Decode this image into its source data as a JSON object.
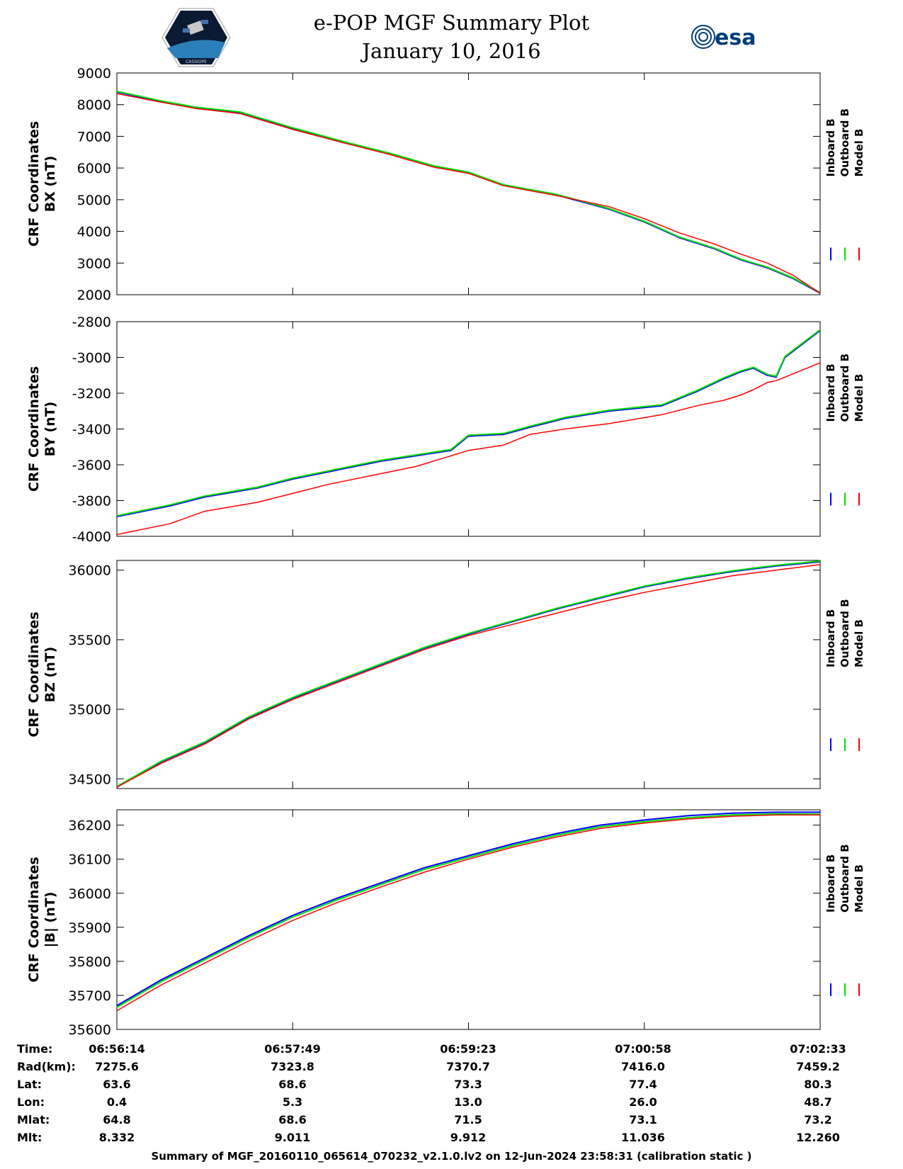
{
  "header": {
    "title": "e-POP MGF Summary Plot",
    "date": "January 10, 2016",
    "esa_logo_text": "esa",
    "mission_logo_text": "CASSIOPE"
  },
  "colors": {
    "inboard": "#0000ff",
    "outboard": "#00dd00",
    "model": "#ff0000"
  },
  "legend": [
    "Inboard B",
    "Outboard B",
    "Model B"
  ],
  "chart_data": [
    {
      "type": "line",
      "title": "",
      "ylabel": "CRF Coordinates\nBX (nT)",
      "ylim": [
        2000,
        9000
      ],
      "yticks": [
        2000,
        3000,
        4000,
        5000,
        6000,
        7000,
        8000,
        9000
      ],
      "xlim": [
        0,
        4
      ],
      "series": [
        {
          "name": "Inboard B",
          "x": [
            0,
            0.25,
            0.45,
            0.7,
            1.0,
            1.3,
            1.55,
            1.8,
            2.0,
            2.2,
            2.5,
            2.8,
            3.0,
            3.2,
            3.4,
            3.55,
            3.7,
            3.85,
            4.0
          ],
          "values": [
            8400,
            8100,
            7900,
            7750,
            7250,
            6800,
            6450,
            6050,
            5850,
            5450,
            5150,
            4700,
            4300,
            3800,
            3450,
            3100,
            2850,
            2500,
            2050
          ]
        },
        {
          "name": "Outboard B",
          "x": [
            0,
            0.25,
            0.45,
            0.7,
            1.0,
            1.3,
            1.55,
            1.8,
            2.0,
            2.2,
            2.5,
            2.8,
            3.0,
            3.2,
            3.4,
            3.55,
            3.7,
            3.85,
            4.0
          ],
          "values": [
            8420,
            8120,
            7920,
            7770,
            7270,
            6820,
            6470,
            6070,
            5870,
            5470,
            5170,
            4720,
            4320,
            3820,
            3470,
            3120,
            2870,
            2520,
            2070
          ]
        },
        {
          "name": "Model B",
          "x": [
            0,
            0.25,
            0.45,
            0.7,
            1.0,
            1.3,
            1.55,
            1.8,
            2.0,
            2.2,
            2.5,
            2.8,
            3.0,
            3.2,
            3.4,
            3.55,
            3.7,
            3.85,
            4.0
          ],
          "values": [
            8350,
            8080,
            7880,
            7720,
            7220,
            6780,
            6430,
            6030,
            5830,
            5440,
            5130,
            4780,
            4400,
            3950,
            3600,
            3280,
            3000,
            2600,
            2050
          ]
        }
      ]
    },
    {
      "type": "line",
      "title": "",
      "ylabel": "CRF Coordinates\nBY (nT)",
      "ylim": [
        -4000,
        -2800
      ],
      "yticks": [
        -4000,
        -3800,
        -3600,
        -3400,
        -3200,
        -3000,
        -2800
      ],
      "xlim": [
        0,
        4
      ],
      "series": [
        {
          "name": "Inboard B",
          "x": [
            0,
            0.3,
            0.5,
            0.8,
            1.0,
            1.2,
            1.5,
            1.7,
            1.9,
            2.0,
            2.2,
            2.35,
            2.55,
            2.8,
            3.1,
            3.3,
            3.45,
            3.55,
            3.62,
            3.7,
            3.75,
            3.8,
            4.0
          ],
          "values": [
            -3890,
            -3830,
            -3780,
            -3730,
            -3680,
            -3640,
            -3580,
            -3550,
            -3520,
            -3440,
            -3430,
            -3390,
            -3340,
            -3300,
            -3270,
            -3190,
            -3120,
            -3080,
            -3060,
            -3100,
            -3110,
            -3000,
            -2850
          ]
        },
        {
          "name": "Outboard B",
          "x": [
            0,
            0.3,
            0.5,
            0.8,
            1.0,
            1.2,
            1.5,
            1.7,
            1.9,
            2.0,
            2.2,
            2.35,
            2.55,
            2.8,
            3.1,
            3.3,
            3.45,
            3.55,
            3.62,
            3.7,
            3.75,
            3.8,
            4.0
          ],
          "values": [
            -3885,
            -3825,
            -3775,
            -3725,
            -3675,
            -3635,
            -3575,
            -3545,
            -3515,
            -3435,
            -3425,
            -3385,
            -3335,
            -3295,
            -3265,
            -3185,
            -3115,
            -3075,
            -3055,
            -3095,
            -3105,
            -2995,
            -2845
          ]
        },
        {
          "name": "Model B",
          "x": [
            0,
            0.3,
            0.5,
            0.8,
            1.0,
            1.2,
            1.5,
            1.7,
            1.9,
            2.0,
            2.2,
            2.35,
            2.55,
            2.8,
            3.1,
            3.3,
            3.45,
            3.55,
            3.62,
            3.7,
            3.75,
            3.8,
            4.0
          ],
          "values": [
            -3990,
            -3930,
            -3860,
            -3810,
            -3760,
            -3710,
            -3650,
            -3610,
            -3550,
            -3520,
            -3490,
            -3430,
            -3400,
            -3370,
            -3320,
            -3270,
            -3240,
            -3210,
            -3180,
            -3140,
            -3130,
            -3110,
            -3030
          ]
        }
      ]
    },
    {
      "type": "line",
      "title": "",
      "ylabel": "CRF Coordinates\nBZ (nT)",
      "ylim": [
        34430,
        36070
      ],
      "yticks": [
        34500,
        35000,
        35500,
        36000
      ],
      "xlim": [
        0,
        4
      ],
      "series": [
        {
          "name": "Inboard B",
          "x": [
            0,
            0.25,
            0.5,
            0.75,
            1.0,
            1.25,
            1.5,
            1.75,
            2.0,
            2.25,
            2.5,
            2.75,
            3.0,
            3.25,
            3.5,
            3.75,
            4.0
          ],
          "values": [
            34440,
            34620,
            34760,
            34940,
            35080,
            35200,
            35320,
            35440,
            35540,
            35630,
            35720,
            35800,
            35880,
            35940,
            35990,
            36030,
            36060
          ]
        },
        {
          "name": "Outboard B",
          "x": [
            0,
            0.25,
            0.5,
            0.75,
            1.0,
            1.25,
            1.5,
            1.75,
            2.0,
            2.25,
            2.5,
            2.75,
            3.0,
            3.25,
            3.5,
            3.75,
            4.0
          ],
          "values": [
            34445,
            34625,
            34765,
            34945,
            35085,
            35205,
            35325,
            35445,
            35545,
            35635,
            35725,
            35805,
            35885,
            35945,
            35995,
            36035,
            36065
          ]
        },
        {
          "name": "Model B",
          "x": [
            0,
            0.25,
            0.5,
            0.75,
            1.0,
            1.25,
            1.5,
            1.75,
            2.0,
            2.25,
            2.5,
            2.75,
            3.0,
            3.25,
            3.5,
            3.75,
            4.0
          ],
          "values": [
            34440,
            34610,
            34750,
            34930,
            35070,
            35190,
            35310,
            35430,
            35530,
            35610,
            35690,
            35770,
            35840,
            35900,
            35960,
            36000,
            36040
          ]
        }
      ]
    },
    {
      "type": "line",
      "title": "",
      "ylabel": "CRF Coordinates\n|B| (nT)",
      "ylim": [
        35600,
        36245
      ],
      "yticks": [
        35600,
        35700,
        35800,
        35900,
        36000,
        36100,
        36200
      ],
      "xlim": [
        0,
        4
      ],
      "series": [
        {
          "name": "Inboard B",
          "x": [
            0,
            0.25,
            0.5,
            0.75,
            1.0,
            1.25,
            1.5,
            1.75,
            2.0,
            2.25,
            2.5,
            2.75,
            3.0,
            3.25,
            3.5,
            3.75,
            4.0
          ],
          "values": [
            35670,
            35745,
            35810,
            35875,
            35935,
            35985,
            36030,
            36075,
            36110,
            36145,
            36175,
            36200,
            36215,
            36228,
            36235,
            36238,
            36238
          ]
        },
        {
          "name": "Outboard B",
          "x": [
            0,
            0.25,
            0.5,
            0.75,
            1.0,
            1.25,
            1.5,
            1.75,
            2.0,
            2.25,
            2.5,
            2.75,
            3.0,
            3.25,
            3.5,
            3.75,
            4.0
          ],
          "values": [
            35665,
            35740,
            35805,
            35870,
            35930,
            35980,
            36025,
            36070,
            36105,
            36140,
            36170,
            36195,
            36210,
            36222,
            36230,
            36233,
            36232
          ]
        },
        {
          "name": "Model B",
          "x": [
            0,
            0.25,
            0.5,
            0.75,
            1.0,
            1.25,
            1.5,
            1.75,
            2.0,
            2.25,
            2.5,
            2.75,
            3.0,
            3.25,
            3.5,
            3.75,
            4.0
          ],
          "values": [
            35655,
            35730,
            35795,
            35860,
            35920,
            35972,
            36018,
            36062,
            36100,
            36135,
            36165,
            36190,
            36206,
            36218,
            36226,
            36230,
            36230
          ]
        }
      ]
    }
  ],
  "ephemeris": {
    "labels": [
      "Time:",
      "Rad(km):",
      "Lat:",
      "Lon:",
      "Mlat:",
      "Mlt:"
    ],
    "columns": [
      [
        "06:56:14",
        "7275.6",
        "63.6",
        "0.4",
        "64.8",
        "8.332"
      ],
      [
        "06:57:49",
        "7323.8",
        "68.6",
        "5.3",
        "68.6",
        "9.011"
      ],
      [
        "06:59:23",
        "7370.7",
        "73.3",
        "13.0",
        "71.5",
        "9.912"
      ],
      [
        "07:00:58",
        "7416.0",
        "77.4",
        "26.0",
        "73.1",
        "11.036"
      ],
      [
        "07:02:33",
        "7459.2",
        "80.3",
        "48.7",
        "73.2",
        "12.260"
      ]
    ]
  },
  "footer": "Summary of MGF_20160110_065614_070232_v2.1.0.lv2 on 12-Jun-2024 23:58:31 (calibration static )"
}
